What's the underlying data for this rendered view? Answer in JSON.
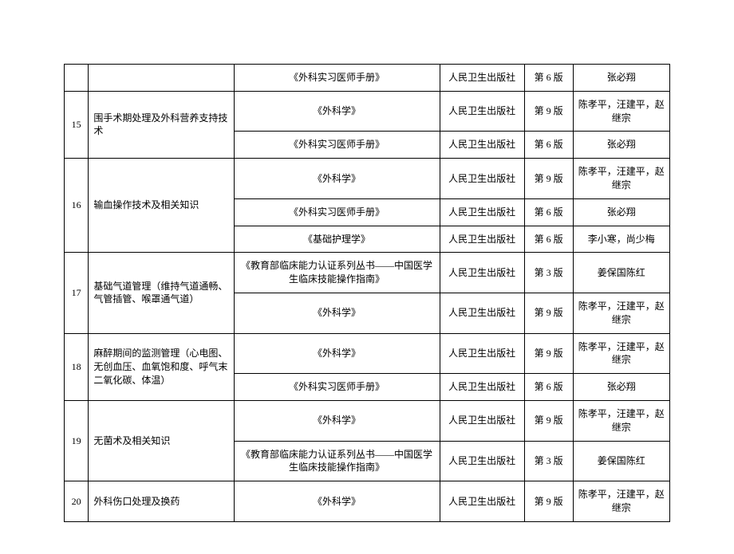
{
  "table": {
    "colors": {
      "border": "#000000",
      "text": "#000000",
      "background": "#ffffff"
    },
    "font_size": 12,
    "rows": [
      {
        "num": "",
        "topic": "",
        "books": [
          {
            "title": "《外科实习医师手册》",
            "publisher": "人民卫生出版社",
            "edition": "第 6 版",
            "authors": "张必翔"
          }
        ]
      },
      {
        "num": "15",
        "topic": "围手术期处理及外科营养支持技术",
        "books": [
          {
            "title": "《外科学》",
            "publisher": "人民卫生出版社",
            "edition": "第 9 版",
            "authors": "陈孝平，汪建平，赵继宗"
          },
          {
            "title": "《外科实习医师手册》",
            "publisher": "人民卫生出版社",
            "edition": "第 6 版",
            "authors": "张必翔"
          }
        ]
      },
      {
        "num": "16",
        "topic": "输血操作技术及相关知识",
        "books": [
          {
            "title": "《外科学》",
            "publisher": "人民卫生出版社",
            "edition": "第 9 版",
            "authors": "陈孝平，汪建平，赵继宗"
          },
          {
            "title": "《外科实习医师手册》",
            "publisher": "人民卫生出版社",
            "edition": "第 6 版",
            "authors": "张必翔"
          },
          {
            "title": "《基础护理学》",
            "publisher": "人民卫生出版社",
            "edition": "第 6 版",
            "authors": "李小寒，尚少梅"
          }
        ]
      },
      {
        "num": "17",
        "topic": "基础气道管理（维持气道通畅、气管插管、喉罩通气道）",
        "books": [
          {
            "title": "《教育部临床能力认证系列丛书——中国医学生临床技能操作指南》",
            "publisher": "人民卫生出版社",
            "edition": "第 3 版",
            "authors": "姜保国陈红"
          },
          {
            "title": "《外科学》",
            "publisher": "人民卫生出版社",
            "edition": "第 9 版",
            "authors": "陈孝平，汪建平，赵继宗"
          }
        ]
      },
      {
        "num": "18",
        "topic": "麻醉期间的监测管理（心电图、无创血压、血氧饱和度、呼气末二氧化碳、体温）",
        "books": [
          {
            "title": "《外科学》",
            "publisher": "人民卫生出版社",
            "edition": "第 9 版",
            "authors": "陈孝平，汪建平，赵继宗"
          },
          {
            "title": "《外科实习医师手册》",
            "publisher": "人民卫生出版社",
            "edition": "第 6 版",
            "authors": "张必翔"
          }
        ]
      },
      {
        "num": "19",
        "topic": "无菌术及相关知识",
        "books": [
          {
            "title": "《外科学》",
            "publisher": "人民卫生出版社",
            "edition": "第 9 版",
            "authors": "陈孝平，汪建平，赵继宗"
          },
          {
            "title": "《教育部临床能力认证系列丛书——中国医学生临床技能操作指南》",
            "publisher": "人民卫生出版社",
            "edition": "第 3 版",
            "authors": "姜保国陈红"
          }
        ]
      },
      {
        "num": "20",
        "topic": "外科伤口处理及换药",
        "books": [
          {
            "title": "《外科学》",
            "publisher": "人民卫生出版社",
            "edition": "第 9 版",
            "authors": "陈孝平，汪建平，赵继宗"
          }
        ]
      }
    ]
  }
}
